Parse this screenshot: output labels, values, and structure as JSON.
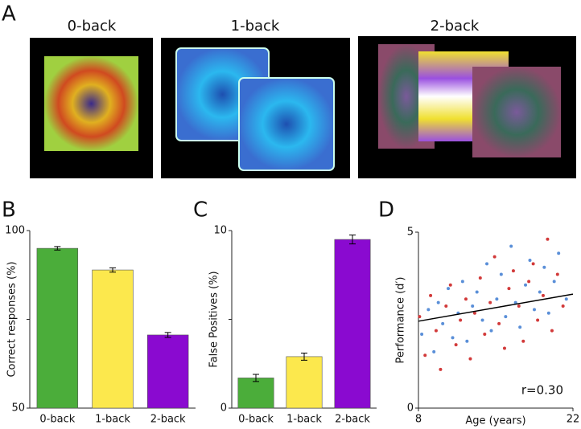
{
  "figure": {
    "panel_labels": [
      "A",
      "B",
      "C",
      "D"
    ],
    "stimuli": [
      "0-back",
      "1-back",
      "2-back"
    ]
  },
  "chart_data": [
    {
      "type": "bar",
      "ylabel": "Correct responses (%)",
      "categories": [
        "0-back",
        "1-back",
        "2-back"
      ],
      "values": [
        95.0,
        88.9,
        70.6
      ],
      "errors": [
        0.5,
        0.6,
        0.7
      ],
      "colors": [
        "#4bad3a",
        "#fce84d",
        "#8a0ad0"
      ],
      "ylim": [
        50,
        100
      ],
      "yticks": [
        50,
        100
      ],
      "minor_yticks": [
        75
      ]
    },
    {
      "type": "bar",
      "ylabel": "False Positives (%)",
      "categories": [
        "0-back",
        "1-back",
        "2-back"
      ],
      "values": [
        1.7,
        2.9,
        9.5
      ],
      "errors": [
        0.2,
        0.2,
        0.25
      ],
      "colors": [
        "#4bad3a",
        "#fce84d",
        "#8a0ad0"
      ],
      "ylim": [
        0,
        10
      ],
      "yticks": [
        0,
        10
      ],
      "minor_yticks": [
        5
      ]
    },
    {
      "type": "scatter",
      "xlabel": "Age (years)",
      "ylabel": "Performance (d′)",
      "xlim": [
        8,
        22
      ],
      "ylim": [
        0,
        5
      ],
      "xticks": [
        8,
        22
      ],
      "yticks": [
        0,
        5
      ],
      "series": [
        {
          "color": "#5a8fd8",
          "x": [
            8.3,
            8.9,
            9.4,
            9.8,
            10.2,
            10.7,
            11.1,
            11.6,
            12.0,
            12.4,
            12.9,
            13.3,
            13.8,
            14.2,
            14.6,
            15.1,
            15.5,
            15.9,
            16.4,
            16.8,
            17.2,
            17.7,
            18.1,
            18.5,
            19.0,
            19.4,
            19.8,
            20.3,
            20.7,
            21.4
          ],
          "y": [
            2.1,
            2.8,
            1.6,
            3.0,
            2.4,
            3.4,
            2.0,
            2.7,
            3.6,
            1.9,
            2.9,
            3.3,
            2.5,
            4.1,
            2.2,
            3.1,
            3.8,
            2.6,
            4.6,
            3.0,
            2.3,
            3.5,
            4.2,
            2.8,
            3.3,
            4.0,
            2.7,
            3.6,
            4.4,
            3.1
          ]
        },
        {
          "color": "#d23a3a",
          "x": [
            8.1,
            8.6,
            9.1,
            9.6,
            10.0,
            10.5,
            10.9,
            11.4,
            11.8,
            12.3,
            12.7,
            13.1,
            13.6,
            14.0,
            14.5,
            14.9,
            15.3,
            15.8,
            16.2,
            16.6,
            17.1,
            17.5,
            18.0,
            18.4,
            18.8,
            19.3,
            19.7,
            20.1,
            20.6,
            21.1
          ],
          "y": [
            2.6,
            1.5,
            3.2,
            2.2,
            1.1,
            2.9,
            3.5,
            1.8,
            2.5,
            3.1,
            1.4,
            2.7,
            3.7,
            2.1,
            3.0,
            4.3,
            2.4,
            1.7,
            3.4,
            3.9,
            2.9,
            1.9,
            3.6,
            4.1,
            2.5,
            3.2,
            4.8,
            2.2,
            3.8,
            2.9
          ]
        }
      ],
      "fit": {
        "x": [
          8,
          22
        ],
        "y": [
          2.47,
          3.24
        ],
        "color": "#000000"
      },
      "annotation": "r=0.30"
    }
  ]
}
